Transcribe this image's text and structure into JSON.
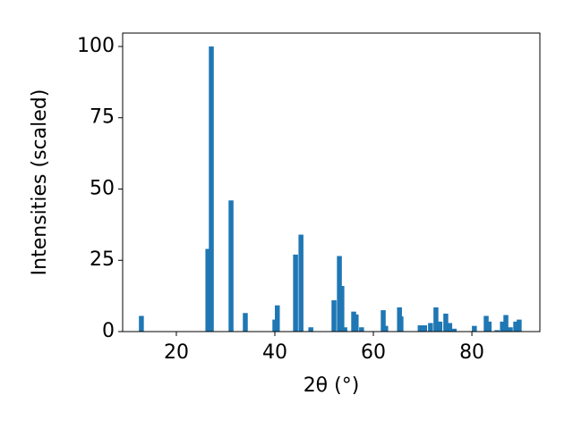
{
  "chart_data": {
    "type": "bar",
    "xlabel": "2θ (°)",
    "ylabel": "Intensities (scaled)",
    "color": "#1f77b4",
    "x": [
      12.9,
      26.4,
      27.1,
      31.1,
      34.0,
      40.0,
      40.5,
      44.2,
      45.3,
      47.3,
      52.0,
      53.1,
      53.6,
      54.2,
      56.0,
      56.5,
      57.6,
      62.0,
      62.5,
      65.3,
      65.6,
      69.5,
      70.4,
      71.6,
      72.7,
      73.5,
      74.7,
      75.5,
      76.4,
      80.5,
      82.9,
      83.5,
      85.1,
      86.2,
      86.9,
      87.8,
      88.9,
      89.6
    ],
    "values": [
      5.5,
      29,
      100,
      46,
      6.5,
      4.2,
      9.2,
      27,
      34,
      1.5,
      11,
      26.5,
      16,
      1.5,
      7,
      6,
      1.5,
      7.5,
      2,
      8.5,
      5.3,
      2.2,
      2.2,
      3,
      8.5,
      3.5,
      6.3,
      3,
      1,
      2,
      5.5,
      3.5,
      0.5,
      3.5,
      5.8,
      1.5,
      3.5,
      4.2
    ],
    "xlim": [
      9.1,
      93.8
    ],
    "xticks": [
      20,
      40,
      60,
      80
    ],
    "ylim": [
      0,
      104.7
    ],
    "yticks": [
      0,
      25,
      50,
      75,
      100
    ]
  }
}
